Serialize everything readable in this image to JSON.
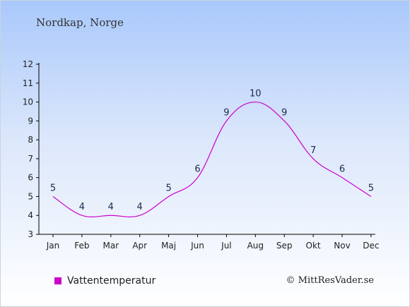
{
  "header": {
    "location": "Nordkap, Norge"
  },
  "legend": {
    "label": "Vattentemperatur"
  },
  "credit": "© MittResVader.se",
  "colors": {
    "line": "#cc00cc",
    "axis": "#000000",
    "value_label": "#1a2a4a"
  },
  "chart_data": {
    "type": "line",
    "categories": [
      "Jan",
      "Feb",
      "Mar",
      "Apr",
      "Maj",
      "Jun",
      "Jul",
      "Aug",
      "Sep",
      "Okt",
      "Nov",
      "Dec"
    ],
    "series": [
      {
        "name": "Vattentemperatur",
        "values": [
          5,
          4,
          4,
          4,
          5,
          6,
          9,
          10,
          9,
          7,
          6,
          5
        ]
      }
    ],
    "data_labels": [
      "5",
      "4",
      "4",
      "4",
      "5",
      "6",
      "9",
      "10",
      "9",
      "7",
      "6",
      "5"
    ],
    "ylim": [
      3,
      12
    ],
    "yticks": [
      3,
      4,
      5,
      6,
      7,
      8,
      9,
      10,
      11,
      12
    ],
    "grid": false,
    "legend_position": "bottom-left"
  }
}
